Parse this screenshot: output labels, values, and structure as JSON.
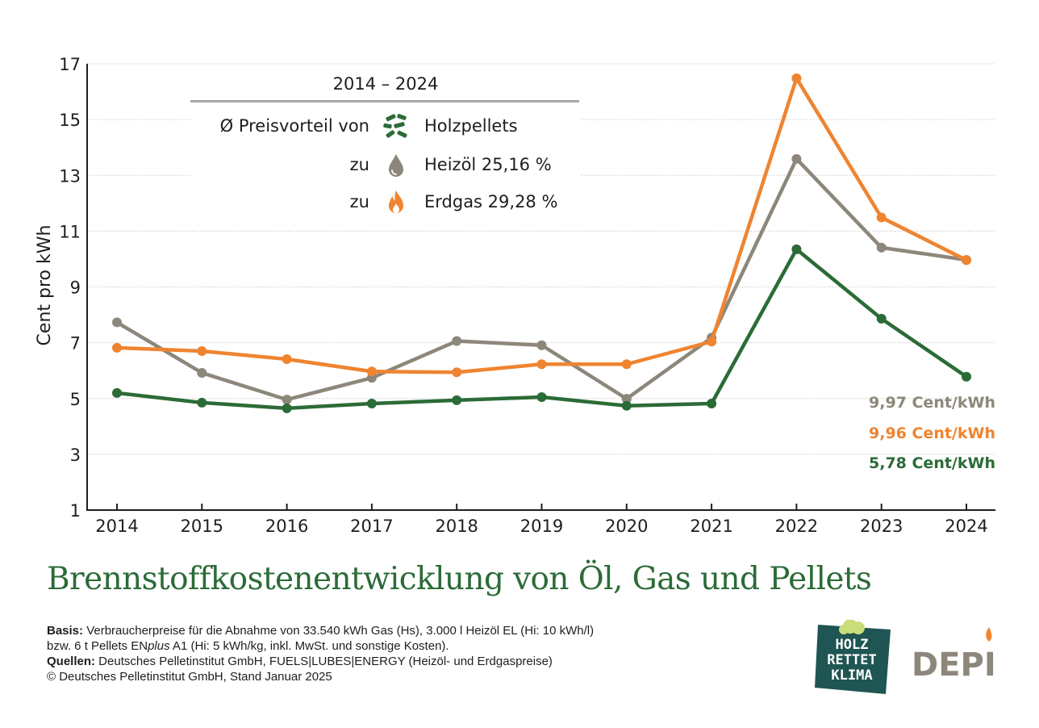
{
  "chart_data": {
    "type": "line",
    "title": "Brennstoffkostenentwicklung von Öl, Gas und Pellets",
    "xlabel": "",
    "ylabel": "Cent pro kWh",
    "ylim": [
      1,
      17
    ],
    "yticks": [
      1,
      3,
      5,
      7,
      9,
      11,
      13,
      15,
      17
    ],
    "grid": true,
    "categories": [
      "2014",
      "2015",
      "2016",
      "2017",
      "2018",
      "2019",
      "2020",
      "2021",
      "2022",
      "2023",
      "2024"
    ],
    "series": [
      {
        "name": "Heizöl",
        "color": "#8d877b",
        "values": [
          7.73,
          5.92,
          4.96,
          5.74,
          7.06,
          6.91,
          4.99,
          7.18,
          13.59,
          10.41,
          9.97
        ]
      },
      {
        "name": "Erdgas",
        "color": "#ef8430",
        "values": [
          6.82,
          6.7,
          6.41,
          5.97,
          5.94,
          6.23,
          6.23,
          7.04,
          16.48,
          11.49,
          9.96
        ]
      },
      {
        "name": "Holzpellets",
        "color": "#2b6b37",
        "values": [
          5.2,
          4.85,
          4.65,
          4.82,
          4.94,
          5.05,
          4.74,
          4.82,
          10.35,
          7.86,
          5.78
        ]
      }
    ],
    "end_labels": [
      {
        "text": "9,97 Cent/kWh",
        "color": "#8d877b"
      },
      {
        "text": "9,96 Cent/kWh",
        "color": "#ef8430"
      },
      {
        "text": "5,78 Cent/kWh",
        "color": "#2b6b37"
      }
    ],
    "legend": {
      "period": "2014 – 2024",
      "rows": [
        {
          "label": "Ø Preisvorteil von",
          "icon": "wood-pellets-icon",
          "text": "Holzpellets"
        },
        {
          "label": "zu",
          "icon": "oil-drop-icon",
          "text": "Heizöl 25,16 %"
        },
        {
          "label": "zu",
          "icon": "flame-icon",
          "text": "Erdgas 29,28 %"
        }
      ]
    }
  },
  "footer": {
    "basis_label": "Basis:",
    "basis_line1": " Verbraucherpreise für die Abnahme von 33.540 kWh Gas (Hs), 3.000 l Heizöl EL (Hi: 10 kWh/l)",
    "basis_line2_a": "bzw. 6 t Pellets EN",
    "basis_line2_plus": "plus",
    "basis_line2_b": " A1 (Hi: 5 kWh/kg, inkl. MwSt. und sonstige Kosten).",
    "sources_label": "Quellen:",
    "sources_text": " Deutsches Pelletinstitut GmbH, FUELS|LUBES|ENERGY (Heizöl- und Erdgaspreise)",
    "copyright": "© Deutsches Pelletinstitut GmbH, Stand Januar 2025"
  },
  "logos": {
    "hrk": [
      "HOLZ",
      "RETTET",
      "KLIMA"
    ],
    "depi": "DEPI"
  },
  "colors": {
    "title_green": "#2b6b37",
    "logo_teal": "#1f5552",
    "depi_gray": "#8d877b"
  }
}
